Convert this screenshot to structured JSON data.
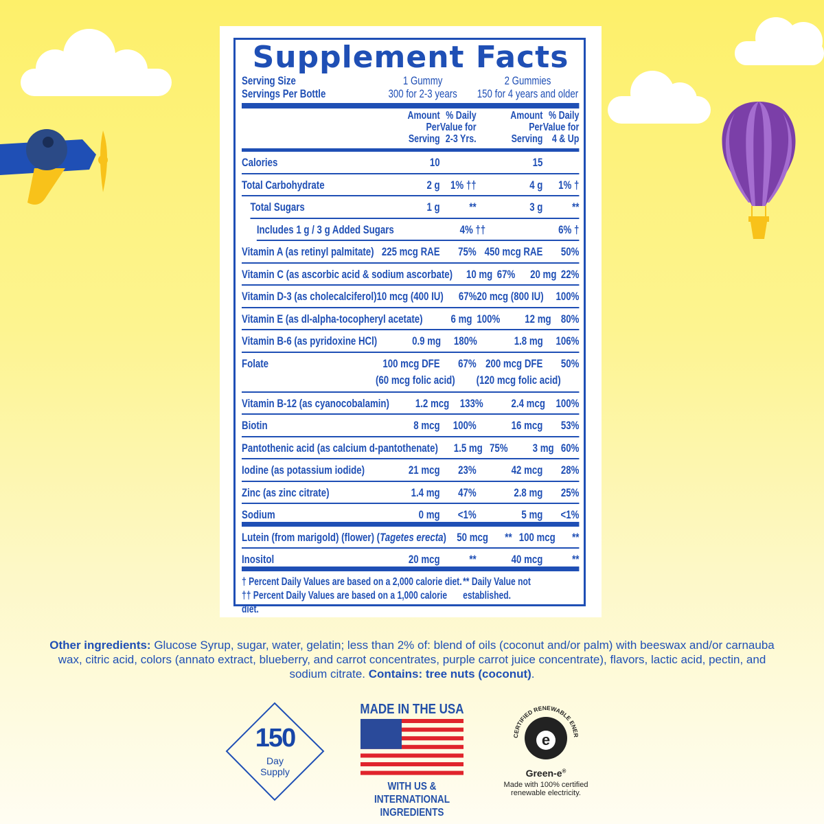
{
  "title": "Supplement Facts",
  "serving": {
    "size_label": "Serving Size",
    "per_bottle_label": "Servings Per Bottle",
    "col1_size": "1 Gummy",
    "col1_per": "300 for 2-3 years",
    "col2_size": "2 Gummies",
    "col2_per": "150 for 4 years and older"
  },
  "headers": {
    "amount": [
      "Amount",
      "Per",
      "Serving"
    ],
    "dv1": [
      "% Daily",
      "Value for",
      "2-3 Yrs."
    ],
    "dv2": [
      "% Daily",
      "Value for",
      "4 & Up"
    ]
  },
  "rows": [
    {
      "name": "Calories",
      "a1": "10",
      "d1": "",
      "a2": "15",
      "d2": ""
    },
    {
      "name": "Total Carbohydrate",
      "a1": "2 g",
      "d1": "1% ††",
      "a2": "4 g",
      "d2": "1% †"
    },
    {
      "name": "Total Sugars",
      "a1": "1 g",
      "d1": "**",
      "a2": "3 g",
      "d2": "**",
      "indent": 1
    },
    {
      "name": "Includes 1 g / 3 g Added Sugars",
      "a1": "",
      "d1": "4% ††",
      "a2": "",
      "d2": "6% †",
      "indent": 2
    },
    {
      "name": "Vitamin A (as retinyl palmitate)",
      "a1": "225 mcg RAE",
      "d1": "75%",
      "a2": "450 mcg RAE",
      "d2": "50%"
    },
    {
      "name": "Vitamin C (as ascorbic acid & sodium ascorbate)",
      "a1": "10 mg",
      "d1": "67%",
      "a2": "20 mg",
      "d2": "22%"
    },
    {
      "name": "Vitamin D-3 (as cholecalciferol)",
      "a1": "10 mcg (400 IU)",
      "d1": "67%",
      "a2": "20 mcg (800 IU)",
      "d2": "100%"
    },
    {
      "name": "Vitamin E (as dl-alpha-tocopheryl acetate)",
      "a1": "6 mg",
      "d1": "100%",
      "a2": "12 mg",
      "d2": "80%"
    },
    {
      "name": "Vitamin B-6 (as pyridoxine HCl)",
      "a1": "0.9 mg",
      "d1": "180%",
      "a2": "1.8 mg",
      "d2": "106%"
    },
    {
      "name": "Folate",
      "a1": "100 mcg DFE",
      "a1b": "(60 mcg folic acid)",
      "d1": "67%",
      "a2": "200 mcg DFE",
      "a2b": "(120 mcg folic acid)",
      "d2": "50%"
    },
    {
      "name": "Vitamin B-12 (as cyanocobalamin)",
      "a1": "1.2 mcg",
      "d1": "133%",
      "a2": "2.4 mcg",
      "d2": "100%"
    },
    {
      "name": "Biotin",
      "a1": "8 mcg",
      "d1": "100%",
      "a2": "16 mcg",
      "d2": "53%"
    },
    {
      "name": "Pantothenic acid (as calcium d-pantothenate)",
      "a1": "1.5 mg",
      "d1": "75%",
      "a2": "3 mg",
      "d2": "60%"
    },
    {
      "name": "Iodine (as potassium iodide)",
      "a1": "21 mcg",
      "d1": "23%",
      "a2": "42 mcg",
      "d2": "28%"
    },
    {
      "name": "Zinc (as zinc citrate)",
      "a1": "1.4 mg",
      "d1": "47%",
      "a2": "2.8 mg",
      "d2": "25%"
    },
    {
      "name": "Sodium",
      "a1": "0 mg",
      "d1": "<1%",
      "a2": "5 mg",
      "d2": "<1%",
      "thick": true
    },
    {
      "name": "Lutein (from marigold) (flower) (",
      "name_italic": "Tagetes erecta",
      "name_post": ")",
      "a1": "50 mcg",
      "d1": "**",
      "a2": "100 mcg",
      "d2": "**"
    },
    {
      "name": "Inositol",
      "a1": "20 mcg",
      "d1": "**",
      "a2": "40 mcg",
      "d2": "**",
      "thick": true
    }
  ],
  "footnotes": {
    "dagger": "† Percent Daily Values are based on a 2,000 calorie diet.",
    "double_dagger": "†† Percent Daily Values are based on a 1,000 calorie diet.",
    "stars": "** Daily Value not established."
  },
  "ingredients": {
    "label": "Other ingredients:",
    "text": " Glucose Syrup, sugar, water, gelatin; less than 2% of: blend of oils (coconut and/or palm) with beeswax and/or carnauba wax, citric acid, colors (annato extract, blueberry, and carrot concentrates, purple carrot juice concentrate), flavors, lactic acid, pectin, and sodium citrate. ",
    "contains": "Contains: tree nuts (coconut)",
    "end": "."
  },
  "badges": {
    "supply_number": "150",
    "supply_line1": "Day",
    "supply_line2": "Supply",
    "usa_top": "MADE IN THE USA",
    "usa_bottom1": "WITH US & INTERNATIONAL",
    "usa_bottom2": "INGREDIENTS",
    "greene_arc": "CERTIFIED RENEWABLE ENERGY",
    "greene_name": "Green-e",
    "greene_reg": "®",
    "greene_line1": "Made with 100% certified",
    "greene_line2": "renewable electricity."
  },
  "colors": {
    "label_blue": "#1f4fb5",
    "background_yellow": "#fdf06a",
    "balloon_purple": "#7b3fa8"
  }
}
